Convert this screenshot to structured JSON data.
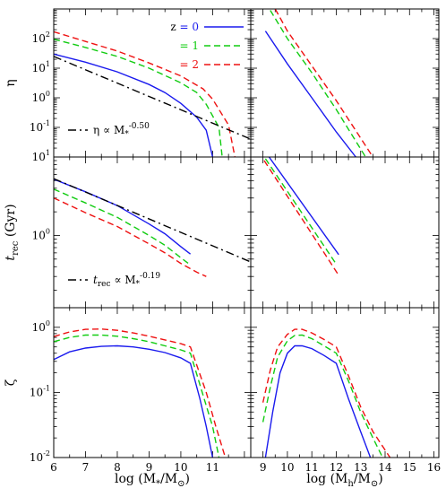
{
  "chart_data": [
    {
      "id": "eta_vs_mstar",
      "type": "line",
      "ylabel": "η",
      "xlabel": "",
      "xlim": [
        6,
        12.2
      ],
      "ylim": [
        0.01,
        1000
      ],
      "yscale": "log",
      "yticks": [
        {
          "value": 0.1,
          "label": "10",
          "exp": "-1"
        },
        {
          "value": 1,
          "label": "10",
          "exp": "0"
        },
        {
          "value": 10,
          "label": "10",
          "exp": "1"
        },
        {
          "value": 100,
          "label": "10",
          "exp": "2"
        }
      ],
      "legend_placement": "top-right",
      "series": [
        {
          "name": "z = 0",
          "legend_label": "z = 0",
          "color": "#1a1aee",
          "dash": "solid",
          "x": [
            6.0,
            7.0,
            8.0,
            9.0,
            9.5,
            10.0,
            10.5,
            10.8,
            11.0
          ],
          "y": [
            30,
            16,
            7.5,
            2.8,
            1.5,
            0.65,
            0.22,
            0.08,
            0.01
          ]
        },
        {
          "name": "z = 1",
          "legend_label": "= 1",
          "color": "#11cc11",
          "dash": "dashed",
          "x": [
            6.0,
            7.0,
            8.0,
            9.0,
            10.0,
            10.5,
            10.8,
            11.2,
            11.3
          ],
          "y": [
            95,
            50,
            25,
            10,
            3.2,
            1.5,
            0.6,
            0.1,
            0.01
          ]
        },
        {
          "name": "z = 2",
          "legend_label": "= 2",
          "color": "#ee1111",
          "dash": "dashed",
          "x": [
            6.0,
            7.0,
            8.0,
            9.0,
            10.0,
            10.7,
            11.0,
            11.5,
            11.7
          ],
          "y": [
            170,
            80,
            38,
            15,
            5.5,
            2.0,
            0.9,
            0.12,
            0.01
          ]
        },
        {
          "name": "fit",
          "legend_label": "η ∝ M",
          "legend_sub": "*",
          "legend_exp": "-0.50",
          "color": "#000000",
          "dash": "dashdot",
          "x": [
            6.0,
            12.2
          ],
          "y": [
            25,
            0.04
          ]
        }
      ]
    },
    {
      "id": "eta_vs_mhalo",
      "type": "line",
      "xlim": [
        8.5,
        16.2
      ],
      "ylim": [
        0.01,
        1000
      ],
      "yscale": "log",
      "series": [
        {
          "name": "z = 0",
          "color": "#1a1aee",
          "dash": "solid",
          "x": [
            9.1,
            10.0,
            11.0,
            12.0,
            12.8
          ],
          "y": [
            180,
            14,
            1.0,
            0.07,
            0.01
          ]
        },
        {
          "name": "z = 1",
          "color": "#11cc11",
          "dash": "dashed",
          "x": [
            9.3,
            10.0,
            11.0,
            12.0,
            13.2
          ],
          "y": [
            900,
            100,
            7.0,
            0.4,
            0.01
          ]
        },
        {
          "name": "z = 2",
          "color": "#ee1111",
          "dash": "dashed",
          "x": [
            9.5,
            10.0,
            11.0,
            12.0,
            13.5
          ],
          "y": [
            1000,
            180,
            12,
            0.8,
            0.01
          ]
        }
      ]
    },
    {
      "id": "trec_vs_mstar",
      "type": "line",
      "ylabel": "t",
      "ylabel_sub": "rec",
      "ylabel_suffix": " (Gyr)",
      "xlim": [
        6,
        12.2
      ],
      "ylim": [
        0.12,
        10
      ],
      "yscale": "log",
      "yticks": [
        {
          "value": 1,
          "label": "10",
          "exp": "0"
        },
        {
          "value": 10,
          "label": "10",
          "exp": "1"
        }
      ],
      "legend_placement": "bottom-left",
      "series": [
        {
          "name": "z = 0",
          "color": "#1a1aee",
          "dash": "solid",
          "x": [
            6.0,
            7.0,
            8.0,
            9.0,
            9.5,
            10.0,
            10.3
          ],
          "y": [
            5.2,
            3.6,
            2.4,
            1.4,
            1.05,
            0.72,
            0.58
          ]
        },
        {
          "name": "z = 1",
          "color": "#11cc11",
          "dash": "dashed",
          "x": [
            6.0,
            7.0,
            8.0,
            9.0,
            9.5,
            10.0,
            10.3
          ],
          "y": [
            3.9,
            2.6,
            1.7,
            1.0,
            0.75,
            0.52,
            0.42
          ]
        },
        {
          "name": "z = 2",
          "color": "#ee1111",
          "dash": "dashed",
          "x": [
            6.0,
            7.0,
            8.0,
            9.0,
            9.5,
            10.0,
            10.5,
            10.8
          ],
          "y": [
            3.0,
            1.95,
            1.3,
            0.78,
            0.6,
            0.44,
            0.34,
            0.3
          ]
        },
        {
          "name": "fit",
          "legend_label": "∝ M",
          "legend_prefix": "t",
          "legend_prefix_sub": "rec",
          "legend_sub": "*",
          "legend_exp": "-0.19",
          "color": "#000000",
          "dash": "dashdot",
          "x": [
            6.0,
            12.2
          ],
          "y": [
            5.3,
            0.46
          ]
        }
      ]
    },
    {
      "id": "trec_vs_mhalo",
      "type": "line",
      "xlim": [
        8.5,
        16.2
      ],
      "ylim": [
        0.12,
        10
      ],
      "yscale": "log",
      "series": [
        {
          "name": "z = 0",
          "color": "#1a1aee",
          "dash": "solid",
          "x": [
            9.2,
            12.1
          ],
          "y": [
            10.5,
            0.57
          ]
        },
        {
          "name": "z = 1",
          "color": "#11cc11",
          "dash": "dashed",
          "x": [
            9.1,
            12.0
          ],
          "y": [
            9.5,
            0.43
          ]
        },
        {
          "name": "z = 2",
          "color": "#ee1111",
          "dash": "dashed",
          "x": [
            9.05,
            12.1
          ],
          "y": [
            9.0,
            0.31
          ]
        }
      ]
    },
    {
      "id": "zeta_vs_mstar",
      "type": "line",
      "ylabel": "ζ",
      "xlabel": "log (M",
      "xlabel_sub": "*",
      "xlabel_mid": "/M",
      "xlabel_sub2": "⊙",
      "xlabel_end": ")",
      "xlim": [
        6,
        12.2
      ],
      "ylim": [
        0.01,
        2
      ],
      "yscale": "log",
      "xticks": [
        6,
        7,
        8,
        9,
        10,
        11
      ],
      "yticks": [
        {
          "value": 0.01,
          "label": "10",
          "exp": "-2"
        },
        {
          "value": 0.1,
          "label": "10",
          "exp": "-1"
        },
        {
          "value": 1,
          "label": "10",
          "exp": "0"
        }
      ],
      "series": [
        {
          "name": "z = 0",
          "color": "#1a1aee",
          "dash": "solid",
          "x": [
            6.0,
            6.5,
            7.0,
            7.5,
            8.0,
            8.5,
            9.0,
            9.5,
            10.0,
            10.3,
            10.6,
            10.8,
            11.0
          ],
          "y": [
            0.32,
            0.42,
            0.48,
            0.51,
            0.52,
            0.5,
            0.46,
            0.41,
            0.34,
            0.28,
            0.08,
            0.03,
            0.01
          ]
        },
        {
          "name": "z = 1",
          "color": "#11cc11",
          "dash": "dashed",
          "x": [
            6.0,
            6.5,
            7.0,
            7.5,
            8.0,
            8.5,
            9.0,
            9.5,
            10.0,
            10.3,
            10.7,
            11.0,
            11.2
          ],
          "y": [
            0.6,
            0.7,
            0.76,
            0.76,
            0.73,
            0.67,
            0.6,
            0.52,
            0.45,
            0.4,
            0.09,
            0.03,
            0.01
          ]
        },
        {
          "name": "z = 2",
          "color": "#ee1111",
          "dash": "dashed",
          "x": [
            6.0,
            6.5,
            7.0,
            7.5,
            8.0,
            8.5,
            9.0,
            9.5,
            10.0,
            10.3,
            10.8,
            11.1,
            11.4
          ],
          "y": [
            0.72,
            0.85,
            0.93,
            0.94,
            0.9,
            0.82,
            0.73,
            0.64,
            0.56,
            0.5,
            0.1,
            0.03,
            0.01
          ]
        }
      ]
    },
    {
      "id": "zeta_vs_mhalo",
      "type": "line",
      "xlabel": "log (M",
      "xlabel_sub": "h",
      "xlabel_mid": "/M",
      "xlabel_sub2": "⊙",
      "xlabel_end": ")",
      "xlim": [
        8.5,
        16.2
      ],
      "ylim": [
        0.01,
        2
      ],
      "yscale": "log",
      "xticks": [
        9,
        10,
        11,
        12,
        13,
        14,
        15,
        16
      ],
      "series": [
        {
          "name": "z = 0",
          "color": "#1a1aee",
          "dash": "solid",
          "x": [
            9.1,
            9.4,
            9.7,
            10.0,
            10.3,
            10.6,
            11.0,
            11.5,
            12.0,
            12.5,
            13.0,
            13.4
          ],
          "y": [
            0.01,
            0.05,
            0.2,
            0.4,
            0.52,
            0.52,
            0.47,
            0.37,
            0.28,
            0.08,
            0.025,
            0.01
          ]
        },
        {
          "name": "z = 1",
          "color": "#11cc11",
          "dash": "dashed",
          "x": [
            9.0,
            9.3,
            9.6,
            10.0,
            10.3,
            10.6,
            11.0,
            11.5,
            12.0,
            12.5,
            13.0,
            13.5,
            13.9
          ],
          "y": [
            0.035,
            0.12,
            0.35,
            0.62,
            0.75,
            0.76,
            0.67,
            0.52,
            0.4,
            0.15,
            0.05,
            0.02,
            0.01
          ]
        },
        {
          "name": "z = 2",
          "color": "#ee1111",
          "dash": "dashed",
          "x": [
            9.0,
            9.3,
            9.6,
            10.0,
            10.3,
            10.6,
            11.0,
            11.5,
            12.0,
            12.5,
            13.0,
            13.5,
            14.2
          ],
          "y": [
            0.07,
            0.22,
            0.5,
            0.78,
            0.93,
            0.93,
            0.82,
            0.65,
            0.5,
            0.18,
            0.06,
            0.025,
            0.01
          ]
        }
      ]
    }
  ]
}
